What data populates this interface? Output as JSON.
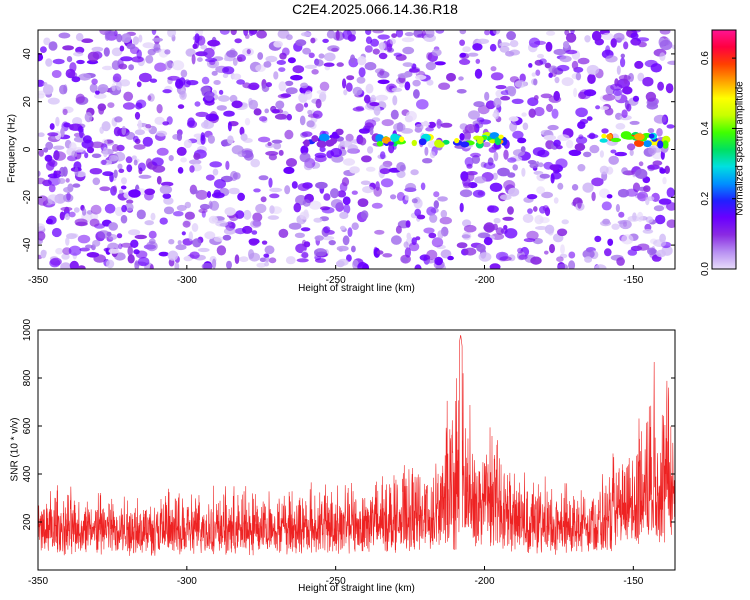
{
  "title": "C2E4.2025.066.14.36.R18",
  "chart_data": [
    {
      "type": "heatmap",
      "xlabel": "Height of straight line (km)",
      "ylabel": "Frequency (Hz)",
      "xlim": [
        -350,
        -136
      ],
      "ylim": [
        -50,
        50
      ],
      "xticks": [
        -350,
        -300,
        -250,
        -200,
        -150
      ],
      "yticks": [
        -40,
        -20,
        0,
        20,
        40
      ],
      "colorbar": {
        "label": "Normalized spectral amplitude",
        "range": [
          0,
          0.68
        ],
        "ticks": [
          0.0,
          0.2,
          0.4,
          0.6
        ],
        "colors": [
          "#e8dcfa",
          "#b890f2",
          "#8a2be2",
          "#6a00ff",
          "#2020ff",
          "#0090ff",
          "#00e0e0",
          "#00e060",
          "#40ff00",
          "#c8ff00",
          "#ffff00",
          "#ffa000",
          "#ff4000",
          "#ff0040",
          "#ff1493"
        ]
      },
      "signal_band": {
        "frequency": 4,
        "segments": [
          {
            "x_start": -262,
            "x_end": -250,
            "peak_amplitude": 0.25
          },
          {
            "x_start": -236,
            "x_end": -193,
            "peak_amplitude": 0.55
          },
          {
            "x_start": -160,
            "x_end": -136,
            "peak_amplitude": 0.6
          }
        ]
      }
    },
    {
      "type": "line",
      "xlabel": "Height of straight line (km)",
      "ylabel": "SNR (10 * v/v)",
      "xlim": [
        -350,
        -136
      ],
      "ylim": [
        0,
        1000
      ],
      "xticks": [
        -350,
        -300,
        -250,
        -200,
        -150
      ],
      "yticks": [
        200,
        400,
        600,
        800,
        1000
      ],
      "color": "#ee2222",
      "envelope": [
        {
          "x": -350,
          "baseline": 130,
          "peak": 310
        },
        {
          "x": -320,
          "baseline": 130,
          "peak": 290
        },
        {
          "x": -290,
          "baseline": 130,
          "peak": 300
        },
        {
          "x": -260,
          "baseline": 140,
          "peak": 320
        },
        {
          "x": -240,
          "baseline": 150,
          "peak": 330
        },
        {
          "x": -225,
          "baseline": 160,
          "peak": 400
        },
        {
          "x": -215,
          "baseline": 170,
          "peak": 460
        },
        {
          "x": -208,
          "baseline": 180,
          "peak": 980
        },
        {
          "x": -203,
          "baseline": 200,
          "peak": 480
        },
        {
          "x": -199,
          "baseline": 220,
          "peak": 550
        },
        {
          "x": -190,
          "baseline": 160,
          "peak": 380
        },
        {
          "x": -175,
          "baseline": 130,
          "peak": 320
        },
        {
          "x": -160,
          "baseline": 150,
          "peak": 350
        },
        {
          "x": -150,
          "baseline": 200,
          "peak": 540
        },
        {
          "x": -143,
          "baseline": 260,
          "peak": 840
        },
        {
          "x": -136,
          "baseline": 230,
          "peak": 700
        }
      ]
    }
  ]
}
